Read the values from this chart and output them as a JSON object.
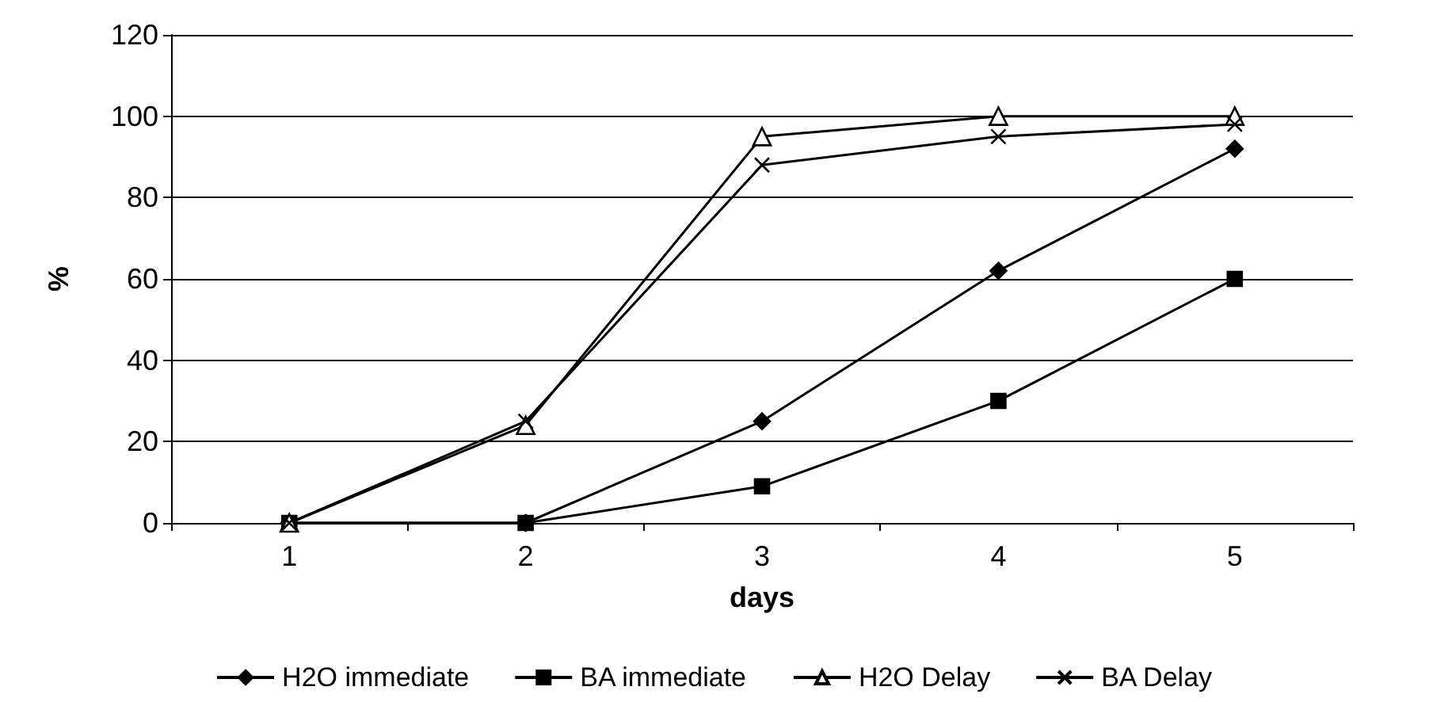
{
  "chart_data": {
    "type": "line",
    "xlabel": "days",
    "ylabel": "%",
    "categories": [
      "1",
      "2",
      "3",
      "4",
      "5"
    ],
    "series": [
      {
        "name": "H2O immediate",
        "color": "#000000",
        "marker": "diamond",
        "values": [
          0,
          0,
          25,
          62,
          92
        ]
      },
      {
        "name": "BA immediate",
        "color": "#000000",
        "marker": "square",
        "values": [
          0,
          0,
          9,
          30,
          60
        ]
      },
      {
        "name": "H2O Delay",
        "color": "#000000",
        "marker": "triangle",
        "values": [
          0,
          24,
          95,
          100,
          100
        ]
      },
      {
        "name": "BA Delay",
        "color": "#000000",
        "marker": "cross",
        "values": [
          0,
          25,
          88,
          95,
          98
        ]
      }
    ],
    "ylim": [
      0,
      120
    ],
    "yticks": [
      0,
      20,
      40,
      60,
      80,
      100,
      120
    ],
    "grid": "y",
    "legend": "bottom"
  }
}
